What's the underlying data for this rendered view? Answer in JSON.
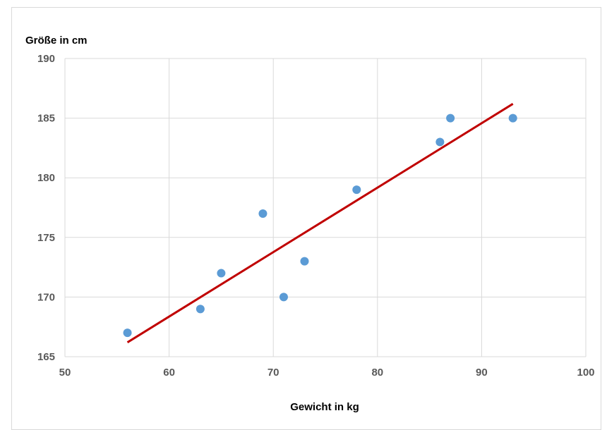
{
  "chart_data": {
    "type": "scatter",
    "title": "",
    "xlabel": "Gewicht in kg",
    "ylabel": "Größe in cm",
    "xlim": [
      50,
      100
    ],
    "ylim": [
      165,
      190
    ],
    "xticks": [
      50,
      60,
      70,
      80,
      90,
      100
    ],
    "yticks": [
      165,
      170,
      175,
      180,
      185,
      190
    ],
    "grid": true,
    "legend": "none",
    "series": [
      {
        "color": "#5b9bd5",
        "points": [
          {
            "x": 56,
            "y": 167
          },
          {
            "x": 63,
            "y": 169
          },
          {
            "x": 65,
            "y": 172
          },
          {
            "x": 69,
            "y": 177
          },
          {
            "x": 71,
            "y": 170
          },
          {
            "x": 73,
            "y": 173
          },
          {
            "x": 78,
            "y": 179
          },
          {
            "x": 86,
            "y": 183
          },
          {
            "x": 87,
            "y": 185
          },
          {
            "x": 93,
            "y": 185
          }
        ]
      }
    ],
    "trendline": {
      "color": "#c00000",
      "from": {
        "x": 56,
        "y": 166.2
      },
      "to": {
        "x": 93,
        "y": 186.2
      }
    }
  }
}
